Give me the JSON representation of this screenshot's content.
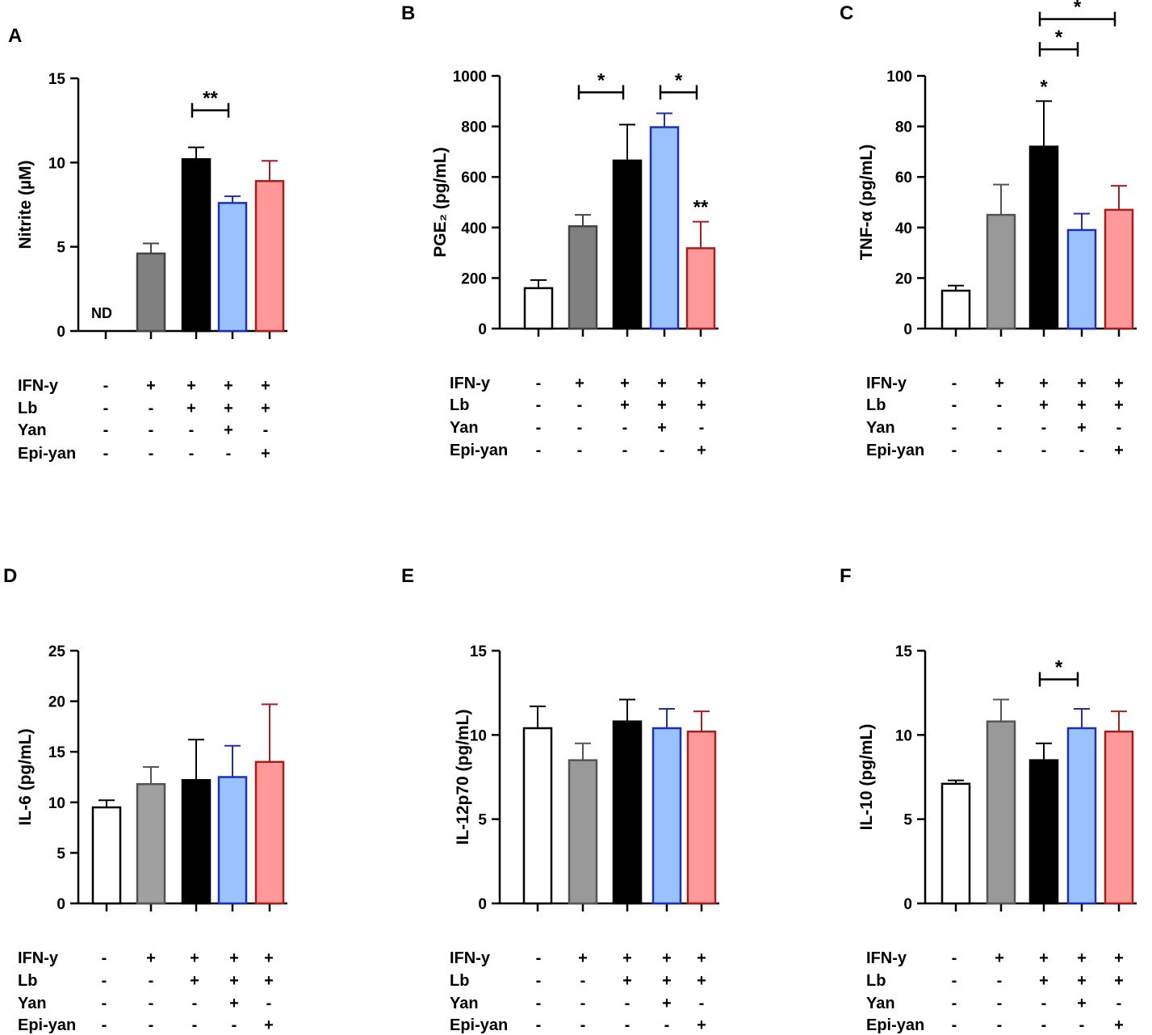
{
  "matrix": {
    "rows": [
      "IFN-y",
      "Lb",
      "Yan",
      "Epi-yan"
    ],
    "columns": [
      [
        "-",
        "-",
        "-",
        "-"
      ],
      [
        "+",
        "-",
        "-",
        "-"
      ],
      [
        "+",
        "+",
        "-",
        "-"
      ],
      [
        "+",
        "+",
        "+",
        "-"
      ],
      [
        "+",
        "+",
        "-",
        "+"
      ]
    ]
  },
  "chart_data": [
    {
      "panel": "A",
      "type": "bar",
      "ylabel": "Nitrite (µM)",
      "ylim": [
        0,
        15
      ],
      "yticks": [
        0,
        5,
        10,
        15
      ],
      "values": [
        0,
        4.6,
        10.2,
        7.6,
        8.9
      ],
      "errors": [
        0,
        0.6,
        0.7,
        0.4,
        1.2
      ],
      "fills": [
        "#ffffff",
        "#808080",
        "#000000",
        "#99c2ff",
        "#ff9999"
      ],
      "strokes": [
        "#000000",
        "#444444",
        "#000000",
        "#1f2fb5",
        "#a81e1e"
      ],
      "annotations": [
        {
          "bar": 0,
          "text": "ND"
        }
      ],
      "brackets": [
        {
          "from": 2,
          "to": 3,
          "y": 13.1,
          "text": "**"
        }
      ],
      "stars": []
    },
    {
      "panel": "B",
      "type": "bar",
      "ylabel": "PGE₂ (pg/mL)",
      "ylim": [
        0,
        1000
      ],
      "yticks": [
        0,
        200,
        400,
        600,
        800,
        1000
      ],
      "values": [
        160,
        405,
        665,
        797,
        318
      ],
      "errors": [
        32,
        45,
        142,
        55,
        105
      ],
      "fills": [
        "#ffffff",
        "#808080",
        "#000000",
        "#99c2ff",
        "#ff9999"
      ],
      "strokes": [
        "#000000",
        "#444444",
        "#000000",
        "#1f2fb5",
        "#a81e1e"
      ],
      "annotations": [],
      "brackets": [
        {
          "from": 1,
          "to": 2,
          "y": 935,
          "text": "*"
        },
        {
          "from": 3,
          "to": 4,
          "y": 935,
          "text": "*"
        }
      ],
      "stars": [
        {
          "bar": 4,
          "text": "**"
        }
      ]
    },
    {
      "panel": "C",
      "type": "bar",
      "ylabel": "TNF-α (pg/mL)",
      "ylim": [
        0,
        100
      ],
      "yticks": [
        0,
        20,
        40,
        60,
        80,
        100
      ],
      "values": [
        15,
        45,
        72,
        39,
        47
      ],
      "errors": [
        2,
        12,
        18,
        6.5,
        9.5
      ],
      "fills": [
        "#ffffff",
        "#999999",
        "#000000",
        "#99c2ff",
        "#ff9999"
      ],
      "strokes": [
        "#000000",
        "#555555",
        "#000000",
        "#1f2fb5",
        "#a81e1e"
      ],
      "annotations": [],
      "brackets": [
        {
          "from": 2,
          "to": 3,
          "y": 110.5,
          "text": "*"
        },
        {
          "from": 2,
          "to": 4,
          "y": 122.5,
          "text": "*"
        }
      ],
      "stars": [
        {
          "bar": 2,
          "text": "*"
        }
      ]
    },
    {
      "panel": "D",
      "type": "bar",
      "ylabel": "IL-6 (pg/mL)",
      "ylim": [
        0,
        25
      ],
      "yticks": [
        0,
        5,
        10,
        15,
        20,
        25
      ],
      "values": [
        9.5,
        11.8,
        12.2,
        12.5,
        14
      ],
      "errors": [
        0.7,
        1.7,
        4,
        3.1,
        5.7
      ],
      "fills": [
        "#ffffff",
        "#a0a0a0",
        "#000000",
        "#99c2ff",
        "#ff9999"
      ],
      "strokes": [
        "#000000",
        "#555555",
        "#000000",
        "#1f2fb5",
        "#a81e1e"
      ],
      "annotations": [],
      "brackets": [],
      "stars": []
    },
    {
      "panel": "E",
      "type": "bar",
      "ylabel": "IL-12p70 (pg/mL)",
      "ylim": [
        0,
        15
      ],
      "yticks": [
        0,
        5,
        10,
        15
      ],
      "values": [
        10.4,
        8.5,
        10.8,
        10.4,
        10.2
      ],
      "errors": [
        1.3,
        1,
        1.3,
        1.15,
        1.2
      ],
      "fills": [
        "#ffffff",
        "#999999",
        "#000000",
        "#99c2ff",
        "#ff9999"
      ],
      "strokes": [
        "#000000",
        "#555555",
        "#000000",
        "#1f2fb5",
        "#a81e1e"
      ],
      "annotations": [],
      "brackets": [],
      "stars": []
    },
    {
      "panel": "F",
      "type": "bar",
      "ylabel": "IL-10 (pg/mL)",
      "ylim": [
        0,
        15
      ],
      "yticks": [
        0,
        5,
        10,
        15
      ],
      "values": [
        7.1,
        10.8,
        8.5,
        10.4,
        10.2
      ],
      "errors": [
        0.2,
        1.3,
        1,
        1.15,
        1.2
      ],
      "fills": [
        "#ffffff",
        "#999999",
        "#000000",
        "#99c2ff",
        "#ff9999"
      ],
      "strokes": [
        "#000000",
        "#555555",
        "#000000",
        "#1f2fb5",
        "#a81e1e"
      ],
      "annotations": [],
      "brackets": [
        {
          "from": 2,
          "to": 3,
          "y": 13.3,
          "text": "*"
        }
      ],
      "stars": []
    }
  ]
}
